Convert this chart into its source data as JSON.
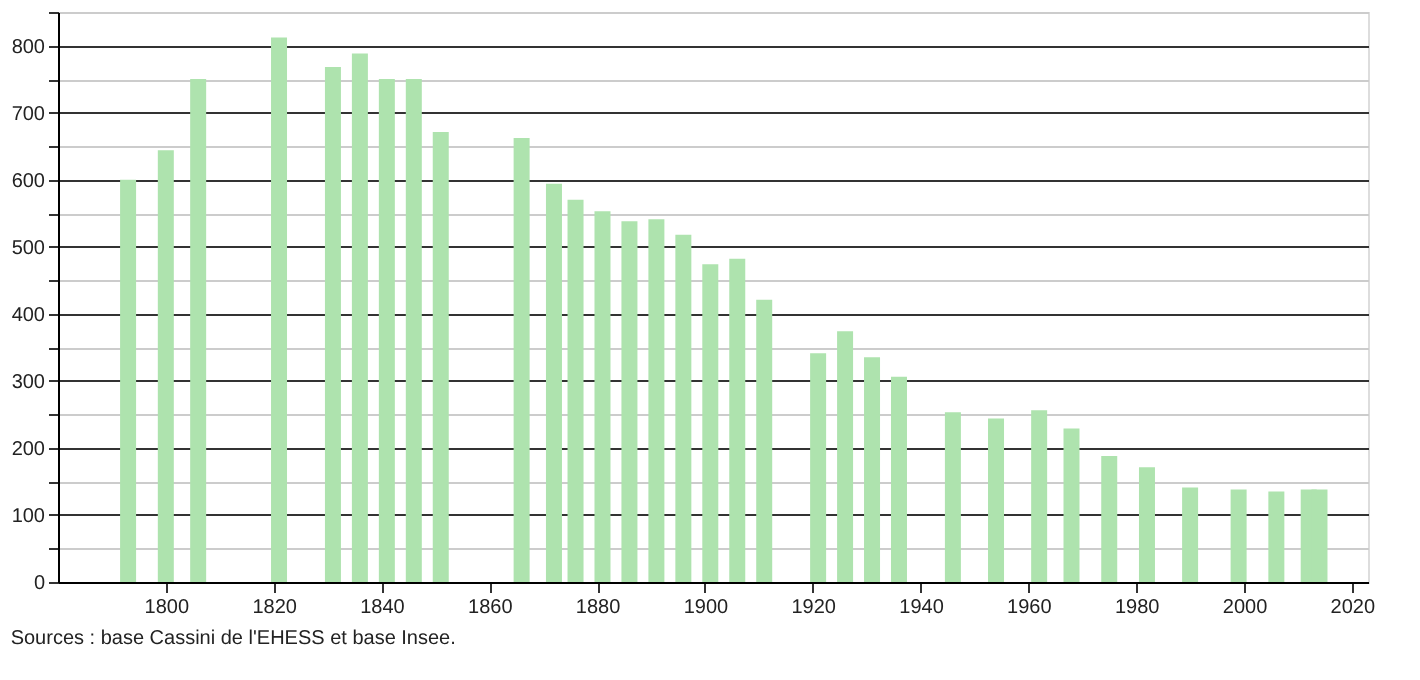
{
  "chart_data": {
    "type": "bar",
    "color": "#aee3ae",
    "x": [
      1793,
      1800,
      1806,
      1821,
      1831,
      1836,
      1841,
      1846,
      1851,
      1866,
      1872,
      1876,
      1881,
      1886,
      1891,
      1896,
      1901,
      1906,
      1911,
      1921,
      1926,
      1931,
      1936,
      1946,
      1954,
      1962,
      1968,
      1975,
      1982,
      1990,
      1999,
      2006,
      2012,
      2014
    ],
    "values": [
      600,
      644,
      750,
      812,
      768,
      788,
      750,
      750,
      671,
      662,
      594,
      570,
      553,
      538,
      541,
      518,
      474,
      482,
      421,
      341,
      374,
      335,
      306,
      253,
      244,
      256,
      229,
      188,
      171,
      141,
      138,
      135,
      138,
      138
    ],
    "xlim": [
      1780,
      2023
    ],
    "xticks": [
      1800,
      1820,
      1840,
      1860,
      1880,
      1900,
      1920,
      1940,
      1960,
      1980,
      2000,
      2020
    ],
    "ylim": [
      0,
      850
    ],
    "yticks": [
      0,
      {
        "value": 50,
        "label": null
      },
      100,
      {
        "value": 150,
        "label": null
      },
      200,
      {
        "value": 250,
        "label": null
      },
      300,
      {
        "value": 350,
        "label": null
      },
      400,
      {
        "value": 450,
        "label": null
      },
      500,
      {
        "value": 550,
        "label": null
      },
      600,
      {
        "value": 650,
        "label": null
      },
      700,
      {
        "value": 750,
        "label": null
      },
      800,
      {
        "value": 850,
        "label": null
      }
    ],
    "grid": "y",
    "annotations": [
      "Sources : base Cassini de l'EHESS et base Insee."
    ]
  }
}
